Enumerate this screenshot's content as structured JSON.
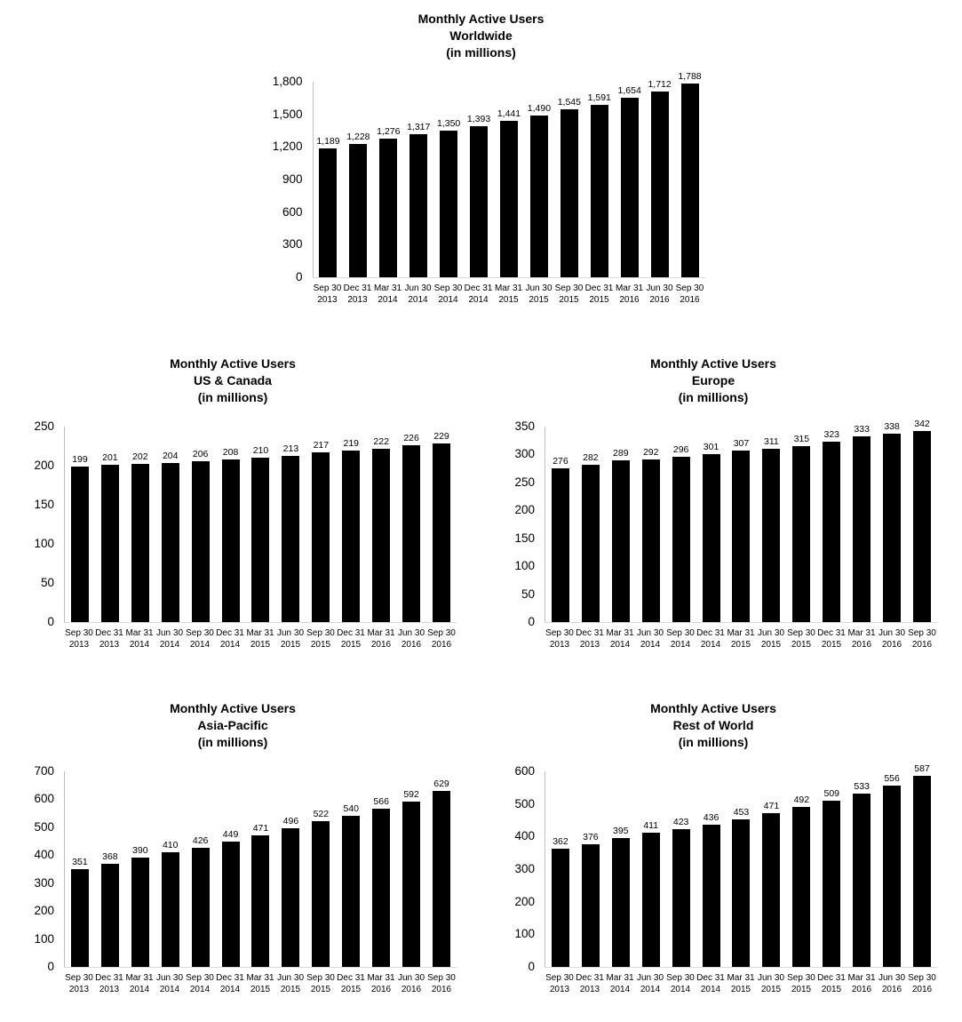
{
  "page": {
    "background": "#ffffff",
    "text_color": "#000000",
    "bar_color": "#000000",
    "axis_line_color": "#bfbfbf"
  },
  "chart_data": [
    {
      "type": "bar",
      "id": "worldwide",
      "position": "top-center",
      "title": "Monthly Active Users Worldwide (in millions)",
      "title_lines": [
        "Monthly Active Users",
        "Worldwide",
        "(in millions)"
      ],
      "xlabel": "",
      "ylabel": "",
      "grid": false,
      "legend": false,
      "value_labels_shown": true,
      "bar_color": "#000000",
      "ylim": [
        0,
        1800
      ],
      "ytick_step": 300,
      "categories": [
        "Sep 30 2013",
        "Dec 31 2013",
        "Mar 31 2014",
        "Jun 30 2014",
        "Sep 30 2014",
        "Dec 31 2014",
        "Mar 31 2015",
        "Jun 30 2015",
        "Sep 30 2015",
        "Dec 31 2015",
        "Mar 31 2016",
        "Jun 30 2016",
        "Sep 30 2016"
      ],
      "values": [
        1189,
        1228,
        1276,
        1317,
        1350,
        1393,
        1441,
        1490,
        1545,
        1591,
        1654,
        1712,
        1788
      ]
    },
    {
      "type": "bar",
      "id": "us-canada",
      "position": "middle-left",
      "title": "Monthly Active Users US & Canada (in millions)",
      "title_lines": [
        "Monthly Active Users",
        "US & Canada",
        "(in millions)"
      ],
      "xlabel": "",
      "ylabel": "",
      "grid": false,
      "legend": false,
      "value_labels_shown": true,
      "bar_color": "#000000",
      "ylim": [
        0,
        250
      ],
      "ytick_step": 50,
      "categories": [
        "Sep 30 2013",
        "Dec 31 2013",
        "Mar 31 2014",
        "Jun 30 2014",
        "Sep 30 2014",
        "Dec 31 2014",
        "Mar 31 2015",
        "Jun 30 2015",
        "Sep 30 2015",
        "Dec 31 2015",
        "Mar 31 2016",
        "Jun 30 2016",
        "Sep 30 2016"
      ],
      "values": [
        199,
        201,
        202,
        204,
        206,
        208,
        210,
        213,
        217,
        219,
        222,
        226,
        229
      ]
    },
    {
      "type": "bar",
      "id": "europe",
      "position": "middle-right",
      "title": "Monthly Active Users Europe (in millions)",
      "title_lines": [
        "Monthly Active Users",
        "Europe",
        "(in millions)"
      ],
      "xlabel": "",
      "ylabel": "",
      "grid": false,
      "legend": false,
      "value_labels_shown": true,
      "bar_color": "#000000",
      "ylim": [
        0,
        350
      ],
      "ytick_step": 50,
      "categories": [
        "Sep 30 2013",
        "Dec 31 2013",
        "Mar 31 2014",
        "Jun 30 2014",
        "Sep 30 2014",
        "Dec 31 2014",
        "Mar 31 2015",
        "Jun 30 2015",
        "Sep 30 2015",
        "Dec 31 2015",
        "Mar 31 2016",
        "Jun 30 2016",
        "Sep 30 2016"
      ],
      "values": [
        276,
        282,
        289,
        292,
        296,
        301,
        307,
        311,
        315,
        323,
        333,
        338,
        342
      ]
    },
    {
      "type": "bar",
      "id": "asia-pacific",
      "position": "bottom-left",
      "title": "Monthly Active Users Asia-Pacific (in millions)",
      "title_lines": [
        "Monthly Active Users",
        "Asia-Pacific",
        "(in millions)"
      ],
      "xlabel": "",
      "ylabel": "",
      "grid": false,
      "legend": false,
      "value_labels_shown": true,
      "bar_color": "#000000",
      "ylim": [
        0,
        700
      ],
      "ytick_step": 100,
      "categories": [
        "Sep 30 2013",
        "Dec 31 2013",
        "Mar 31 2014",
        "Jun 30 2014",
        "Sep 30 2014",
        "Dec 31 2014",
        "Mar 31 2015",
        "Jun 30 2015",
        "Sep 30 2015",
        "Dec 31 2015",
        "Mar 31 2016",
        "Jun 30 2016",
        "Sep 30 2016"
      ],
      "values": [
        351,
        368,
        390,
        410,
        426,
        449,
        471,
        496,
        522,
        540,
        566,
        592,
        629
      ]
    },
    {
      "type": "bar",
      "id": "rest-of-world",
      "position": "bottom-right",
      "title": "Monthly Active Users Rest of World (in millions)",
      "title_lines": [
        "Monthly Active Users",
        "Rest of World",
        "(in millions)"
      ],
      "xlabel": "",
      "ylabel": "",
      "grid": false,
      "legend": false,
      "value_labels_shown": true,
      "bar_color": "#000000",
      "ylim": [
        0,
        600
      ],
      "ytick_step": 100,
      "categories": [
        "Sep 30 2013",
        "Dec 31 2013",
        "Mar 31 2014",
        "Jun 30 2014",
        "Sep 30 2014",
        "Dec 31 2014",
        "Mar 31 2015",
        "Jun 30 2015",
        "Sep 30 2015",
        "Dec 31 2015",
        "Mar 31 2016",
        "Jun 30 2016",
        "Sep 30 2016"
      ],
      "values": [
        362,
        376,
        395,
        411,
        423,
        436,
        453,
        471,
        492,
        509,
        533,
        556,
        587
      ]
    }
  ]
}
